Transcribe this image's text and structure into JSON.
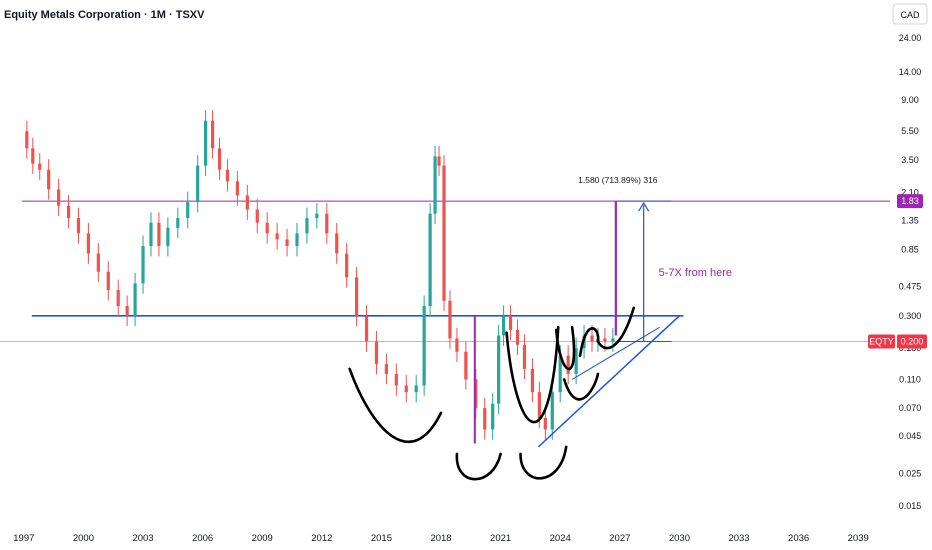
{
  "chart_data": {
    "type": "candlestick",
    "title": "Equity Metals Corporation · 1M · TSXV",
    "currency": "CAD",
    "y_scale": "log",
    "y_range": [
      0.012,
      28
    ],
    "x_range": [
      1995.8,
      2040.6
    ],
    "y_ticks": [
      "24.00",
      "14.00",
      "9.00",
      "5.50",
      "3.50",
      "2.10",
      "1.35",
      "0.85",
      "0.475",
      "0.300",
      "0.180",
      "0.110",
      "0.070",
      "0.045",
      "0.025",
      "0.015"
    ],
    "x_ticks": [
      "1997",
      "2000",
      "2003",
      "2006",
      "2009",
      "2012",
      "2015",
      "2018",
      "2021",
      "2024",
      "2027",
      "2030",
      "2033",
      "2036",
      "2039"
    ],
    "series": [
      {
        "name": "EQTY",
        "points": [
          [
            1997.0,
            5.5
          ],
          [
            1997.3,
            4.2
          ],
          [
            1997.6,
            3.3
          ],
          [
            1998.0,
            3.0
          ],
          [
            1998.5,
            2.2
          ],
          [
            1999.0,
            1.7
          ],
          [
            1999.5,
            1.4
          ],
          [
            2000.0,
            1.1
          ],
          [
            2000.5,
            0.8
          ],
          [
            2001.0,
            0.6
          ],
          [
            2001.5,
            0.45
          ],
          [
            2002.0,
            0.35
          ],
          [
            2002.4,
            0.3
          ],
          [
            2002.8,
            0.5
          ],
          [
            2003.2,
            0.9
          ],
          [
            2003.6,
            1.3
          ],
          [
            2004.0,
            0.9
          ],
          [
            2004.5,
            1.2
          ],
          [
            2005.0,
            1.4
          ],
          [
            2005.5,
            1.8
          ],
          [
            2006.0,
            3.2
          ],
          [
            2006.3,
            6.5
          ],
          [
            2006.7,
            4.2
          ],
          [
            2007.0,
            3.0
          ],
          [
            2007.5,
            2.5
          ],
          [
            2008.0,
            2.0
          ],
          [
            2008.5,
            1.6
          ],
          [
            2009.0,
            1.3
          ],
          [
            2009.5,
            1.1
          ],
          [
            2010.0,
            1.0
          ],
          [
            2010.5,
            0.9
          ],
          [
            2011.0,
            1.1
          ],
          [
            2011.5,
            1.4
          ],
          [
            2012.0,
            1.5
          ],
          [
            2012.5,
            1.1
          ],
          [
            2013.0,
            0.8
          ],
          [
            2013.5,
            0.55
          ],
          [
            2014.0,
            0.3
          ],
          [
            2014.5,
            0.2
          ],
          [
            2015.0,
            0.14
          ],
          [
            2015.5,
            0.12
          ],
          [
            2016.0,
            0.1
          ],
          [
            2016.5,
            0.09
          ],
          [
            2017.0,
            0.1
          ],
          [
            2017.3,
            0.35
          ],
          [
            2017.6,
            1.5
          ],
          [
            2017.8,
            3.7
          ],
          [
            2018.0,
            3.2
          ],
          [
            2018.3,
            0.38
          ],
          [
            2018.6,
            0.21
          ],
          [
            2019.0,
            0.17
          ],
          [
            2019.5,
            0.11
          ],
          [
            2020.0,
            0.07
          ],
          [
            2020.4,
            0.05
          ],
          [
            2020.8,
            0.075
          ],
          [
            2021.0,
            0.22
          ],
          [
            2021.3,
            0.3
          ],
          [
            2021.7,
            0.24
          ],
          [
            2022.0,
            0.19
          ],
          [
            2022.4,
            0.13
          ],
          [
            2022.8,
            0.09
          ],
          [
            2023.1,
            0.06
          ],
          [
            2023.4,
            0.05
          ],
          [
            2023.8,
            0.09
          ],
          [
            2024.2,
            0.16
          ],
          [
            2024.6,
            0.12
          ],
          [
            2025.0,
            0.18
          ],
          [
            2025.4,
            0.22
          ],
          [
            2025.8,
            0.2
          ],
          [
            2026.0,
            0.21
          ],
          [
            2026.5,
            0.2
          ],
          [
            2026.8,
            0.21
          ]
        ]
      }
    ],
    "levels": [
      {
        "label": "1.83",
        "value": 1.83,
        "color": "#9c27b0"
      },
      {
        "label": "0.200",
        "value": 0.2,
        "color": "#f23645"
      },
      {
        "label": "0.300",
        "value": 0.3,
        "color": "#1e53e5"
      }
    ],
    "annotations": [
      {
        "text": "1.580 (713.89%) 316",
        "color": "#131722"
      },
      {
        "text": "5-7X from here",
        "color": "#9c27b0"
      }
    ],
    "symbol_tag": "EQTY",
    "symbol_value": "0.200",
    "colors": {
      "up": "#26a69a",
      "down": "#ef5350",
      "purple": "#9c27b0",
      "blue": "#1e53e5",
      "red": "#f23645"
    }
  }
}
